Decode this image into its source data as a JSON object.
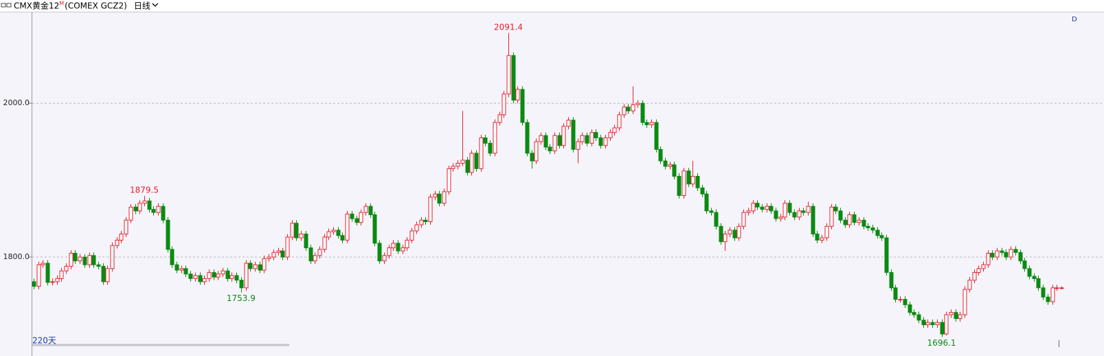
{
  "chart_data": {
    "type": "candlestick",
    "title": "CMX黄金12",
    "title_superscript": "M",
    "subtitle": "(COMEX GCZ2)",
    "period": "日线",
    "footer": "220天",
    "corner_label": "D",
    "up_color": "#e3212d",
    "down_color": "#0b8a12",
    "ylim": [
      1683,
      2119
    ],
    "yticks": [
      {
        "value": 1800,
        "label": "1800.0"
      },
      {
        "value": 2000,
        "label": "2000.0"
      }
    ],
    "grid": true,
    "annotations": [
      {
        "value": 1879.5,
        "label": "1879.5"
      },
      {
        "value": 1753.9,
        "label": "1753.9"
      },
      {
        "value": 2091.4,
        "label": "2091.4"
      },
      {
        "value": 1696.1,
        "label": "1696.1"
      }
    ],
    "open": [
      1768,
      1762,
      1790,
      1792,
      1767,
      1768,
      1772,
      1782,
      1788,
      1805,
      1795,
      1800,
      1790,
      1802,
      1790,
      1788,
      1768,
      1785,
      1815,
      1822,
      1830,
      1848,
      1865,
      1860,
      1870,
      1873,
      1862,
      1858,
      1866,
      1848,
      1810,
      1790,
      1783,
      1785,
      1778,
      1772,
      1776,
      1768,
      1772,
      1780,
      1774,
      1778,
      1782,
      1772,
      1776,
      1770,
      1760,
      1792,
      1785,
      1790,
      1783,
      1798,
      1800,
      1806,
      1808,
      1800,
      1826,
      1844,
      1825,
      1830,
      1812,
      1795,
      1802,
      1810,
      1826,
      1833,
      1835,
      1828,
      1822,
      1856,
      1850,
      1845,
      1858,
      1866,
      1855,
      1818,
      1795,
      1802,
      1812,
      1818,
      1808,
      1812,
      1822,
      1834,
      1842,
      1848,
      1846,
      1878,
      1882,
      1870,
      1885,
      1915,
      1918,
      1922,
      1926,
      1910,
      1935,
      1915,
      1955,
      1948,
      1935,
      1975,
      1985,
      2012,
      2062,
      2004,
      2018,
      1975,
      1935,
      1925,
      1950,
      1958,
      1943,
      1938,
      1958,
      1945,
      1970,
      1978,
      1940,
      1950,
      1958,
      1948,
      1962,
      1955,
      1945,
      1955,
      1962,
      1968,
      1985,
      1995,
      1990,
      1998,
      2000,
      1975,
      1972,
      1975,
      1940,
      1925,
      1918,
      1920,
      1905,
      1880,
      1912,
      1895,
      1905,
      1890,
      1882,
      1860,
      1858,
      1840,
      1820,
      1830,
      1835,
      1825,
      1840,
      1858,
      1860,
      1870,
      1865,
      1862,
      1866,
      1860,
      1850,
      1852,
      1870,
      1858,
      1852,
      1860,
      1858,
      1866,
      1830,
      1822,
      1825,
      1840,
      1865,
      1860,
      1848,
      1842,
      1855,
      1845,
      1848,
      1840,
      1838,
      1835,
      1828,
      1825,
      1780,
      1760,
      1745,
      1745,
      1738,
      1728,
      1725,
      1718,
      1712,
      1715,
      1712,
      1715,
      1700,
      1725,
      1728,
      1720,
      1725,
      1758,
      1770,
      1780,
      1785,
      1790,
      1805,
      1800,
      1808,
      1806,
      1800,
      1810,
      1806,
      1795,
      1785,
      1775,
      1772,
      1760,
      1748,
      1742,
      1760,
      1760
    ],
    "high": [
      1772,
      1794,
      1796,
      1796,
      1772,
      1776,
      1786,
      1792,
      1809,
      1809,
      1804,
      1804,
      1806,
      1806,
      1794,
      1792,
      1789,
      1819,
      1826,
      1834,
      1852,
      1869,
      1869,
      1874,
      1879.5,
      1877,
      1866,
      1870,
      1870,
      1852,
      1814,
      1794,
      1789,
      1789,
      1782,
      1780,
      1780,
      1776,
      1784,
      1784,
      1782,
      1786,
      1786,
      1780,
      1780,
      1774,
      1796,
      1796,
      1794,
      1794,
      1802,
      1804,
      1810,
      1812,
      1812,
      1830,
      1848,
      1848,
      1834,
      1834,
      1816,
      1806,
      1814,
      1830,
      1837,
      1839,
      1839,
      1832,
      1860,
      1860,
      1854,
      1862,
      1870,
      1870,
      1859,
      1822,
      1806,
      1816,
      1822,
      1822,
      1816,
      1826,
      1838,
      1846,
      1852,
      1852,
      1882,
      1886,
      1886,
      1889,
      1919,
      1922,
      1926,
      1990,
      1930,
      1939,
      1939,
      1959,
      1959,
      1952,
      1979,
      1989,
      2016,
      2091.4,
      2066,
      2022,
      2022,
      1979,
      1939,
      1954,
      1962,
      1962,
      1947,
      1962,
      1962,
      1974,
      1982,
      1982,
      1954,
      1962,
      1962,
      1966,
      1966,
      1959,
      1959,
      1966,
      1972,
      1989,
      1999,
      1999,
      2022,
      2004,
      2004,
      1979,
      1979,
      1979,
      1944,
      1929,
      1924,
      1924,
      1909,
      1916,
      1916,
      1925,
      1909,
      1894,
      1886,
      1864,
      1862,
      1844,
      1834,
      1839,
      1839,
      1844,
      1862,
      1864,
      1874,
      1874,
      1869,
      1870,
      1870,
      1864,
      1856,
      1874,
      1874,
      1862,
      1864,
      1864,
      1872,
      1870,
      1834,
      1829,
      1844,
      1869,
      1869,
      1864,
      1852,
      1859,
      1859,
      1852,
      1852,
      1844,
      1842,
      1839,
      1832,
      1829,
      1784,
      1764,
      1749,
      1749,
      1742,
      1732,
      1729,
      1722,
      1719,
      1719,
      1719,
      1719,
      1729,
      1732,
      1732,
      1729,
      1762,
      1774,
      1784,
      1789,
      1794,
      1809,
      1809,
      1812,
      1812,
      1810,
      1814,
      1814,
      1810,
      1799,
      1789,
      1779,
      1776,
      1764,
      1752,
      1764,
      1764,
      1762
    ],
    "low": [
      1758,
      1758,
      1786,
      1763,
      1763,
      1764,
      1768,
      1778,
      1784,
      1791,
      1791,
      1786,
      1786,
      1786,
      1784,
      1764,
      1764,
      1781,
      1811,
      1818,
      1826,
      1844,
      1856,
      1856,
      1866,
      1858,
      1854,
      1854,
      1844,
      1806,
      1786,
      1779,
      1779,
      1774,
      1768,
      1768,
      1764,
      1764,
      1768,
      1770,
      1770,
      1774,
      1768,
      1768,
      1766,
      1753.9,
      1756,
      1781,
      1781,
      1779,
      1779,
      1794,
      1796,
      1802,
      1796,
      1796,
      1822,
      1821,
      1821,
      1808,
      1791,
      1791,
      1798,
      1806,
      1822,
      1829,
      1824,
      1818,
      1818,
      1846,
      1841,
      1841,
      1854,
      1851,
      1814,
      1791,
      1791,
      1798,
      1808,
      1804,
      1804,
      1808,
      1818,
      1830,
      1838,
      1842,
      1842,
      1874,
      1866,
      1866,
      1881,
      1911,
      1914,
      1918,
      1906,
      1906,
      1911,
      1911,
      1944,
      1931,
      1931,
      1971,
      1981,
      2008,
      2000,
      2000,
      1971,
      1931,
      1915,
      1921,
      1946,
      1939,
      1934,
      1934,
      1941,
      1941,
      1966,
      1936,
      1922,
      1946,
      1944,
      1944,
      1951,
      1941,
      1941,
      1951,
      1958,
      1964,
      1981,
      1986,
      1986,
      1994,
      1971,
      1968,
      1968,
      1936,
      1921,
      1914,
      1914,
      1901,
      1876,
      1876,
      1891,
      1891,
      1886,
      1878,
      1856,
      1854,
      1836,
      1816,
      1808,
      1826,
      1821,
      1821,
      1836,
      1854,
      1856,
      1861,
      1858,
      1858,
      1856,
      1846,
      1846,
      1848,
      1854,
      1848,
      1848,
      1854,
      1854,
      1826,
      1818,
      1818,
      1821,
      1836,
      1856,
      1844,
      1838,
      1838,
      1841,
      1841,
      1836,
      1834,
      1831,
      1824,
      1821,
      1776,
      1756,
      1741,
      1741,
      1734,
      1724,
      1721,
      1714,
      1708,
      1708,
      1708,
      1708,
      1696.1,
      1698,
      1721,
      1716,
      1716,
      1721,
      1754,
      1766,
      1776,
      1781,
      1786,
      1796,
      1796,
      1802,
      1796,
      1796,
      1802,
      1791,
      1781,
      1771,
      1768,
      1756,
      1744,
      1738,
      1738,
      1756,
      1758
    ],
    "close": [
      1762,
      1790,
      1792,
      1767,
      1768,
      1772,
      1782,
      1788,
      1805,
      1795,
      1800,
      1790,
      1802,
      1790,
      1788,
      1768,
      1785,
      1815,
      1822,
      1830,
      1848,
      1865,
      1860,
      1870,
      1873,
      1862,
      1858,
      1866,
      1848,
      1810,
      1790,
      1783,
      1785,
      1778,
      1772,
      1776,
      1768,
      1772,
      1780,
      1774,
      1778,
      1782,
      1772,
      1776,
      1770,
      1760,
      1792,
      1785,
      1790,
      1783,
      1798,
      1800,
      1806,
      1808,
      1800,
      1826,
      1844,
      1825,
      1830,
      1812,
      1795,
      1802,
      1810,
      1826,
      1833,
      1835,
      1828,
      1822,
      1856,
      1850,
      1845,
      1858,
      1866,
      1855,
      1818,
      1795,
      1802,
      1812,
      1818,
      1808,
      1812,
      1822,
      1834,
      1842,
      1848,
      1846,
      1878,
      1882,
      1870,
      1885,
      1915,
      1918,
      1922,
      1926,
      1910,
      1935,
      1915,
      1955,
      1948,
      1935,
      1975,
      1985,
      2012,
      2062,
      2004,
      2018,
      1975,
      1935,
      1925,
      1950,
      1958,
      1943,
      1938,
      1958,
      1945,
      1970,
      1978,
      1940,
      1950,
      1958,
      1948,
      1962,
      1955,
      1945,
      1955,
      1962,
      1968,
      1985,
      1995,
      1990,
      1998,
      2000,
      1975,
      1972,
      1975,
      1940,
      1925,
      1918,
      1920,
      1905,
      1880,
      1912,
      1895,
      1905,
      1890,
      1882,
      1860,
      1858,
      1840,
      1820,
      1830,
      1835,
      1825,
      1840,
      1858,
      1860,
      1870,
      1865,
      1862,
      1866,
      1860,
      1850,
      1852,
      1870,
      1858,
      1852,
      1860,
      1858,
      1866,
      1830,
      1822,
      1825,
      1840,
      1865,
      1860,
      1848,
      1842,
      1855,
      1845,
      1848,
      1840,
      1838,
      1835,
      1828,
      1825,
      1780,
      1760,
      1745,
      1745,
      1738,
      1728,
      1725,
      1718,
      1712,
      1715,
      1712,
      1715,
      1700,
      1725,
      1728,
      1720,
      1725,
      1758,
      1770,
      1780,
      1785,
      1790,
      1805,
      1800,
      1808,
      1806,
      1800,
      1810,
      1806,
      1795,
      1785,
      1775,
      1772,
      1760,
      1748,
      1742,
      1760,
      1760,
      1760
    ]
  }
}
